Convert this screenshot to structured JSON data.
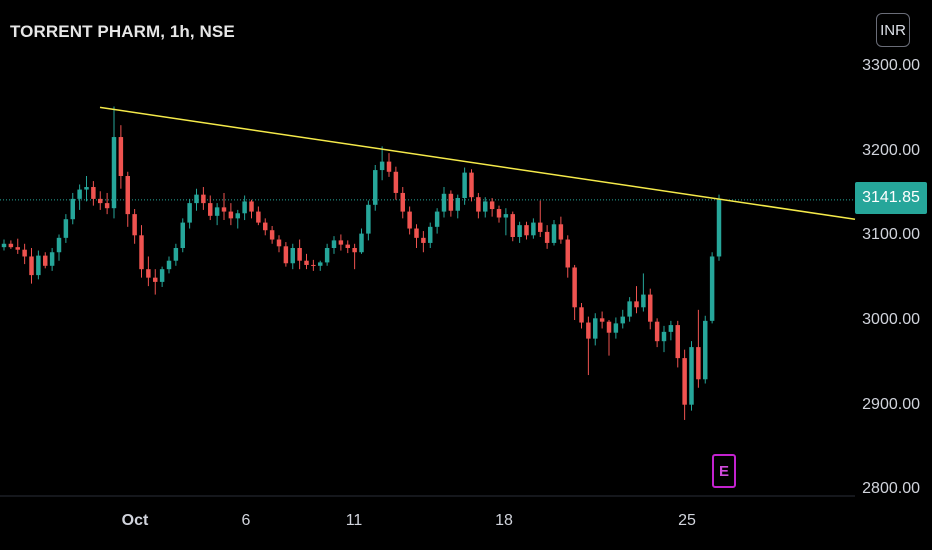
{
  "header": {
    "symbol_title": "TORRENT PHARM, 1h, NSE"
  },
  "currency_button": "INR",
  "colors": {
    "up": "#26a69a",
    "down": "#ef5350",
    "trendline": "#f5ea4a",
    "background": "#000000",
    "event_marker": "#c322cf"
  },
  "last_price_label": "3141.85",
  "event_marker_label": "E",
  "chart_data": {
    "type": "candlestick",
    "title": "TORRENT PHARM, 1h, NSE",
    "y_ticks": [
      "3300.00",
      "3200.00",
      "3100.00",
      "3000.00",
      "2900.00",
      "2800.00"
    ],
    "ylim": [
      2795,
      3345
    ],
    "x_ticks": [
      "Oct",
      "6",
      "11",
      "18",
      "25"
    ],
    "last_price": 3141.85,
    "trendline": {
      "start_price": 3251,
      "end_price": 3119
    },
    "candles_ohlc": [
      [
        3086,
        3095,
        3082,
        3090
      ],
      [
        3090,
        3094,
        3084,
        3086
      ],
      [
        3086,
        3096,
        3078,
        3083
      ],
      [
        3083,
        3090,
        3066,
        3075
      ],
      [
        3075,
        3085,
        3043,
        3053
      ],
      [
        3053,
        3082,
        3048,
        3076
      ],
      [
        3076,
        3080,
        3061,
        3064
      ],
      [
        3064,
        3085,
        3058,
        3080
      ],
      [
        3080,
        3101,
        3070,
        3097
      ],
      [
        3097,
        3125,
        3091,
        3119
      ],
      [
        3119,
        3150,
        3113,
        3143
      ],
      [
        3143,
        3160,
        3130,
        3154
      ],
      [
        3154,
        3170,
        3140,
        3157
      ],
      [
        3157,
        3164,
        3135,
        3143
      ],
      [
        3143,
        3152,
        3130,
        3138
      ],
      [
        3138,
        3150,
        3125,
        3132
      ],
      [
        3132,
        3252,
        3120,
        3216
      ],
      [
        3216,
        3230,
        3155,
        3170
      ],
      [
        3170,
        3175,
        3110,
        3125
      ],
      [
        3125,
        3131,
        3090,
        3100
      ],
      [
        3100,
        3112,
        3050,
        3060
      ],
      [
        3060,
        3075,
        3040,
        3050
      ],
      [
        3050,
        3060,
        3030,
        3045
      ],
      [
        3045,
        3063,
        3039,
        3060
      ],
      [
        3060,
        3075,
        3055,
        3070
      ],
      [
        3070,
        3090,
        3064,
        3085
      ],
      [
        3085,
        3120,
        3080,
        3115
      ],
      [
        3115,
        3143,
        3108,
        3138
      ],
      [
        3138,
        3155,
        3129,
        3148
      ],
      [
        3148,
        3157,
        3130,
        3138
      ],
      [
        3138,
        3147,
        3118,
        3123
      ],
      [
        3123,
        3138,
        3112,
        3133
      ],
      [
        3133,
        3150,
        3118,
        3128
      ],
      [
        3128,
        3138,
        3112,
        3120
      ],
      [
        3120,
        3130,
        3108,
        3126
      ],
      [
        3126,
        3147,
        3118,
        3140
      ],
      [
        3140,
        3142,
        3120,
        3128
      ],
      [
        3128,
        3134,
        3112,
        3115
      ],
      [
        3115,
        3120,
        3100,
        3106
      ],
      [
        3106,
        3111,
        3090,
        3095
      ],
      [
        3095,
        3100,
        3080,
        3087
      ],
      [
        3087,
        3092,
        3063,
        3067
      ],
      [
        3067,
        3090,
        3060,
        3085
      ],
      [
        3085,
        3095,
        3060,
        3070
      ],
      [
        3070,
        3078,
        3060,
        3065
      ],
      [
        3065,
        3071,
        3058,
        3064
      ],
      [
        3064,
        3070,
        3058,
        3068
      ],
      [
        3068,
        3090,
        3064,
        3085
      ],
      [
        3085,
        3099,
        3078,
        3094
      ],
      [
        3094,
        3101,
        3082,
        3089
      ],
      [
        3089,
        3094,
        3079,
        3085
      ],
      [
        3085,
        3090,
        3060,
        3080
      ],
      [
        3080,
        3108,
        3078,
        3102
      ],
      [
        3102,
        3141,
        3094,
        3136
      ],
      [
        3136,
        3183,
        3129,
        3177
      ],
      [
        3177,
        3205,
        3165,
        3187
      ],
      [
        3187,
        3197,
        3169,
        3175
      ],
      [
        3175,
        3181,
        3142,
        3150
      ],
      [
        3150,
        3157,
        3120,
        3128
      ],
      [
        3128,
        3134,
        3101,
        3108
      ],
      [
        3108,
        3113,
        3085,
        3097
      ],
      [
        3097,
        3105,
        3080,
        3091
      ],
      [
        3091,
        3115,
        3085,
        3110
      ],
      [
        3110,
        3132,
        3102,
        3128
      ],
      [
        3128,
        3157,
        3121,
        3149
      ],
      [
        3149,
        3153,
        3122,
        3129
      ],
      [
        3129,
        3148,
        3120,
        3144
      ],
      [
        3144,
        3180,
        3136,
        3174
      ],
      [
        3174,
        3178,
        3140,
        3145
      ],
      [
        3145,
        3150,
        3120,
        3128
      ],
      [
        3128,
        3145,
        3121,
        3140
      ],
      [
        3140,
        3144,
        3122,
        3131
      ],
      [
        3131,
        3135,
        3115,
        3121
      ],
      [
        3121,
        3132,
        3100,
        3125
      ],
      [
        3125,
        3128,
        3093,
        3098
      ],
      [
        3098,
        3116,
        3091,
        3112
      ],
      [
        3112,
        3116,
        3095,
        3100
      ],
      [
        3100,
        3120,
        3096,
        3115
      ],
      [
        3115,
        3141,
        3098,
        3104
      ],
      [
        3104,
        3112,
        3084,
        3091
      ],
      [
        3091,
        3118,
        3088,
        3113
      ],
      [
        3113,
        3122,
        3090,
        3095
      ],
      [
        3095,
        3100,
        3050,
        3062
      ],
      [
        3062,
        3065,
        3000,
        3015
      ],
      [
        3015,
        3020,
        2990,
        2997
      ],
      [
        2997,
        3004,
        2935,
        2978
      ],
      [
        2978,
        3008,
        2970,
        3002
      ],
      [
        3002,
        3010,
        2990,
        2998
      ],
      [
        2998,
        3000,
        2958,
        2985
      ],
      [
        2985,
        3003,
        2978,
        2996
      ],
      [
        2996,
        3012,
        2990,
        3004
      ],
      [
        3004,
        3027,
        2998,
        3022
      ],
      [
        3022,
        3040,
        3008,
        3015
      ],
      [
        3015,
        3055,
        3010,
        3030
      ],
      [
        3030,
        3037,
        2989,
        2998
      ],
      [
        2998,
        3002,
        2968,
        2975
      ],
      [
        2975,
        2993,
        2962,
        2986
      ],
      [
        2986,
        2999,
        2976,
        2994
      ],
      [
        2994,
        2999,
        2944,
        2955
      ],
      [
        2955,
        2965,
        2882,
        2900
      ],
      [
        2900,
        2975,
        2893,
        2968
      ],
      [
        2968,
        3012,
        2920,
        2930
      ],
      [
        2930,
        3005,
        2925,
        2999
      ],
      [
        2999,
        3080,
        2996,
        3075
      ],
      [
        3075,
        3148,
        3070,
        3142
      ]
    ]
  }
}
